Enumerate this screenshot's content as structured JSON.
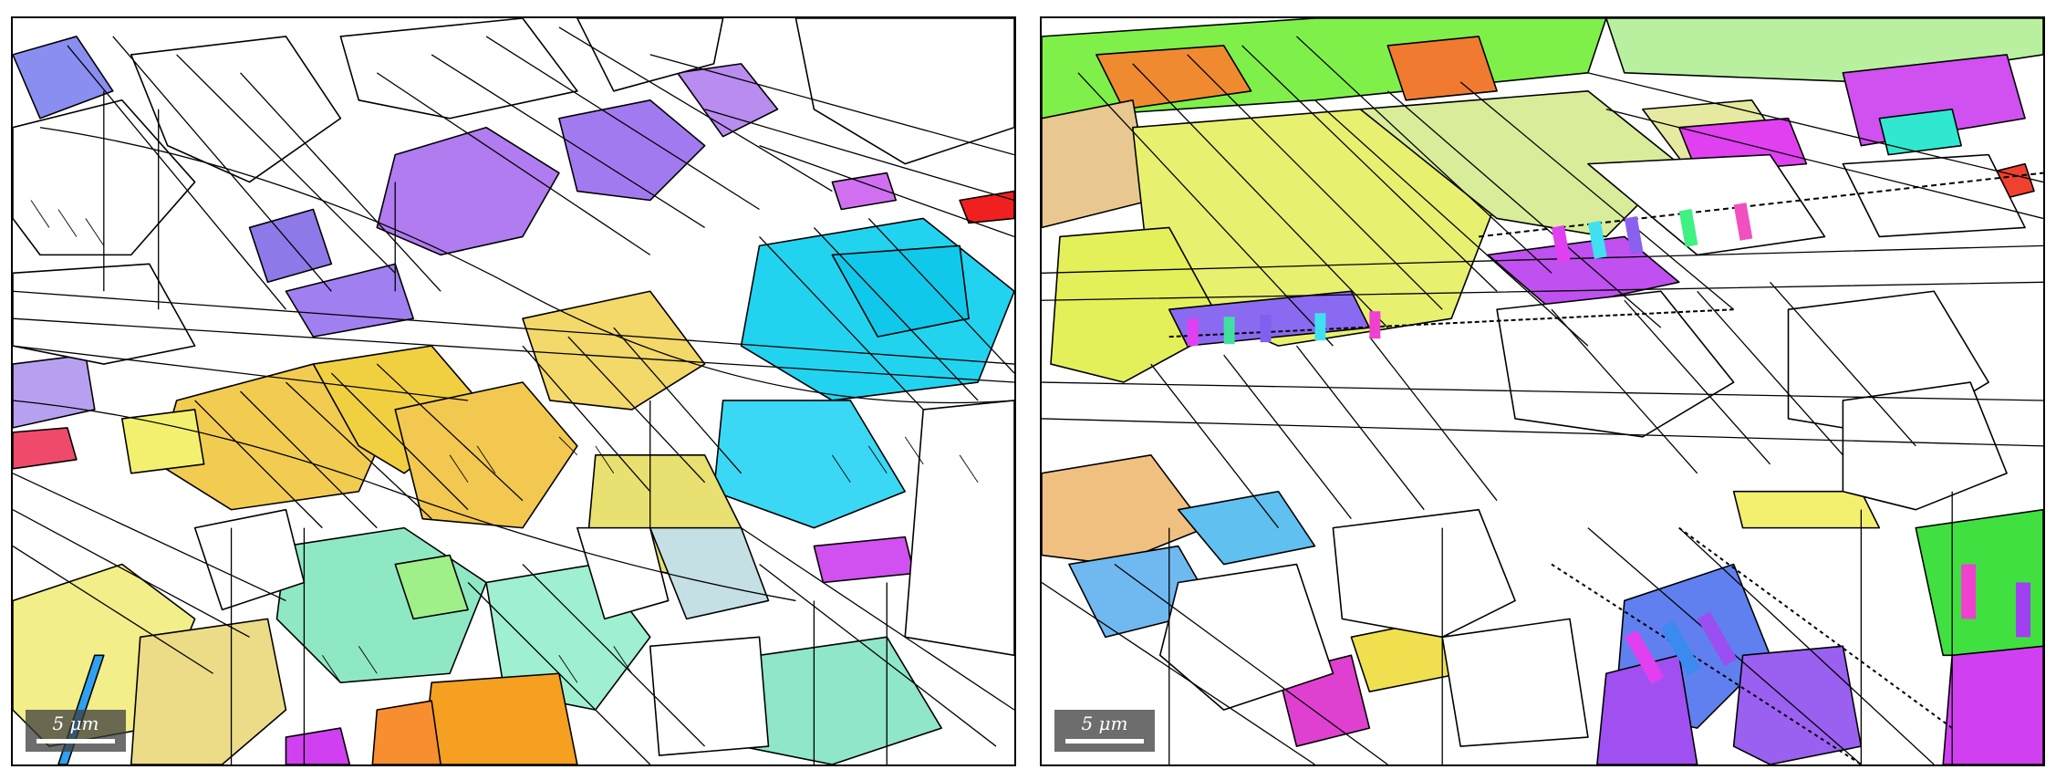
{
  "panels": [
    {
      "id": "left",
      "description_key": "ebsd-orientation-map-left",
      "scale_bar": {
        "label": "5 μm"
      }
    },
    {
      "id": "right",
      "description_key": "ebsd-orientation-map-right",
      "scale_bar": {
        "label": "5 μm"
      }
    }
  ],
  "colors": {
    "boundary": "#000000",
    "background": "#ffffff",
    "purple": "#b07cf0",
    "violet": "#9a70e8",
    "cyan": "#22d3f0",
    "yellow": "#f2d860",
    "light_yellow": "#f3ef8a",
    "orange": "#f5a020",
    "mint": "#8fe8c4",
    "green": "#7ff04a",
    "magenta": "#e040f0",
    "red": "#f03020",
    "blue": "#3a8af0",
    "pink": "#f09ad0"
  }
}
